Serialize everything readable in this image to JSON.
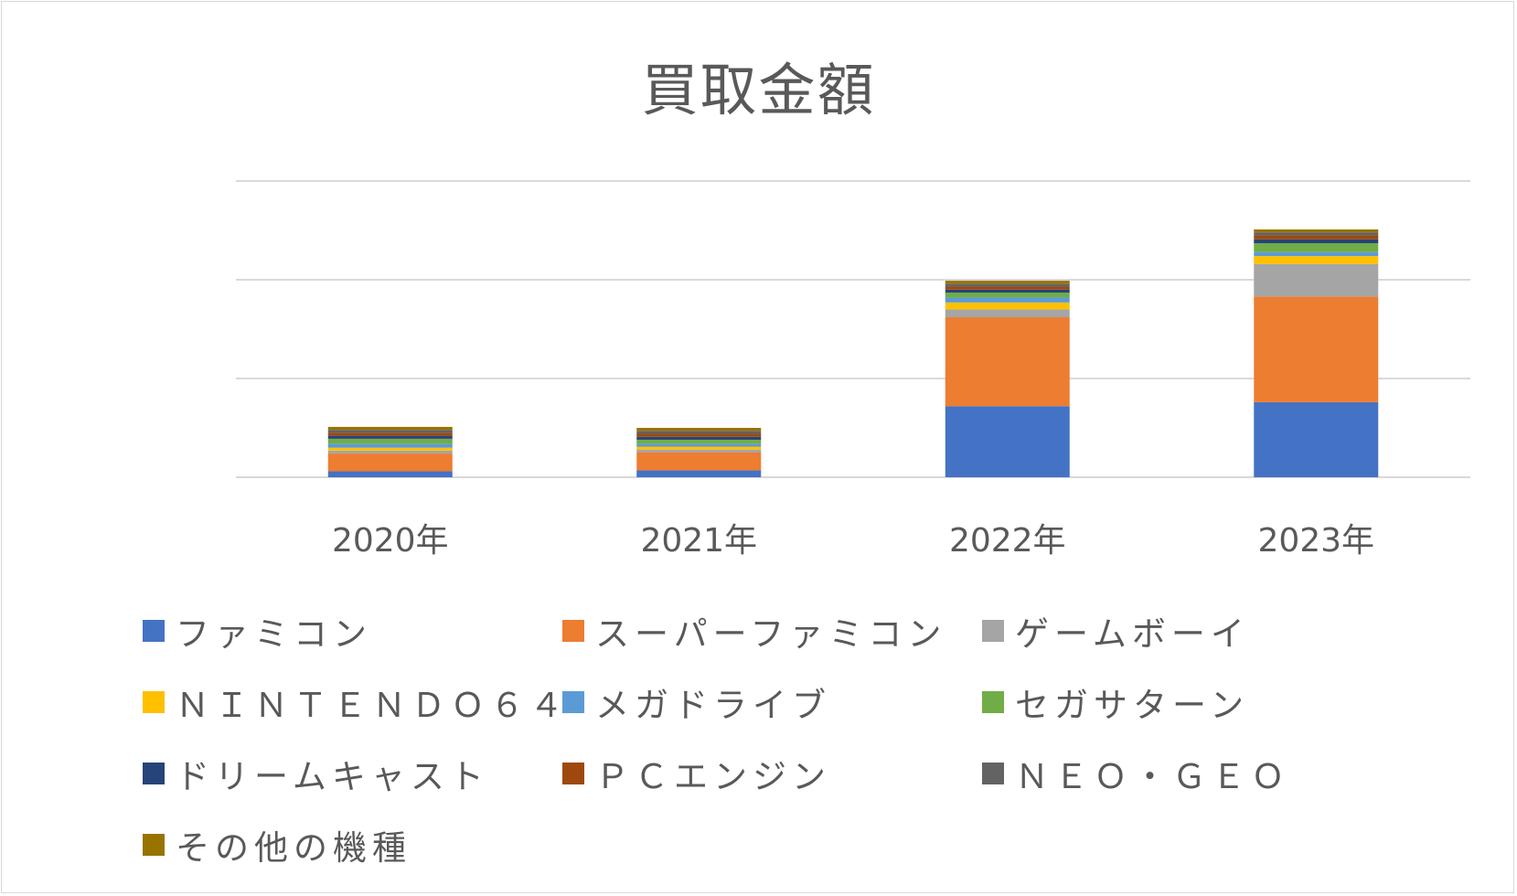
{
  "chart_data": {
    "type": "bar",
    "stacked": true,
    "title": "買取金額",
    "categories": [
      "2020年",
      "2021年",
      "2022年",
      "2023年"
    ],
    "grid": true,
    "legend_position": "bottom",
    "y_axis_labels_visible": false,
    "ylim": [
      0,
      300
    ],
    "series": [
      {
        "name": "ファミコン",
        "color": "#4472c4",
        "values": [
          6,
          7,
          72,
          76
        ]
      },
      {
        "name": "スーパーファミコン",
        "color": "#ed7d31",
        "values": [
          18,
          18,
          90,
          107
        ]
      },
      {
        "name": "ゲームボーイ",
        "color": "#a5a5a5",
        "values": [
          3,
          3,
          8,
          33
        ]
      },
      {
        "name": "ＮＩＮＴＥＮＤＯ６４",
        "color": "#ffc000",
        "values": [
          3,
          3,
          7,
          8
        ]
      },
      {
        "name": "メガドライブ",
        "color": "#5b9bd5",
        "values": [
          4,
          3,
          5,
          4
        ]
      },
      {
        "name": "セガサターン",
        "color": "#70ad47",
        "values": [
          5,
          4,
          5,
          9
        ]
      },
      {
        "name": "ドリームキャスト",
        "color": "#264478",
        "values": [
          3,
          3,
          3,
          4
        ]
      },
      {
        "name": "ＰＣエンジン",
        "color": "#9e480e",
        "values": [
          3,
          3,
          3,
          4
        ]
      },
      {
        "name": "ＮＥＯ・ＧＥＯ",
        "color": "#636363",
        "values": [
          3,
          3,
          3,
          3
        ]
      },
      {
        "name": "その他の機種",
        "color": "#997300",
        "values": [
          3,
          3,
          3,
          3
        ]
      }
    ]
  }
}
